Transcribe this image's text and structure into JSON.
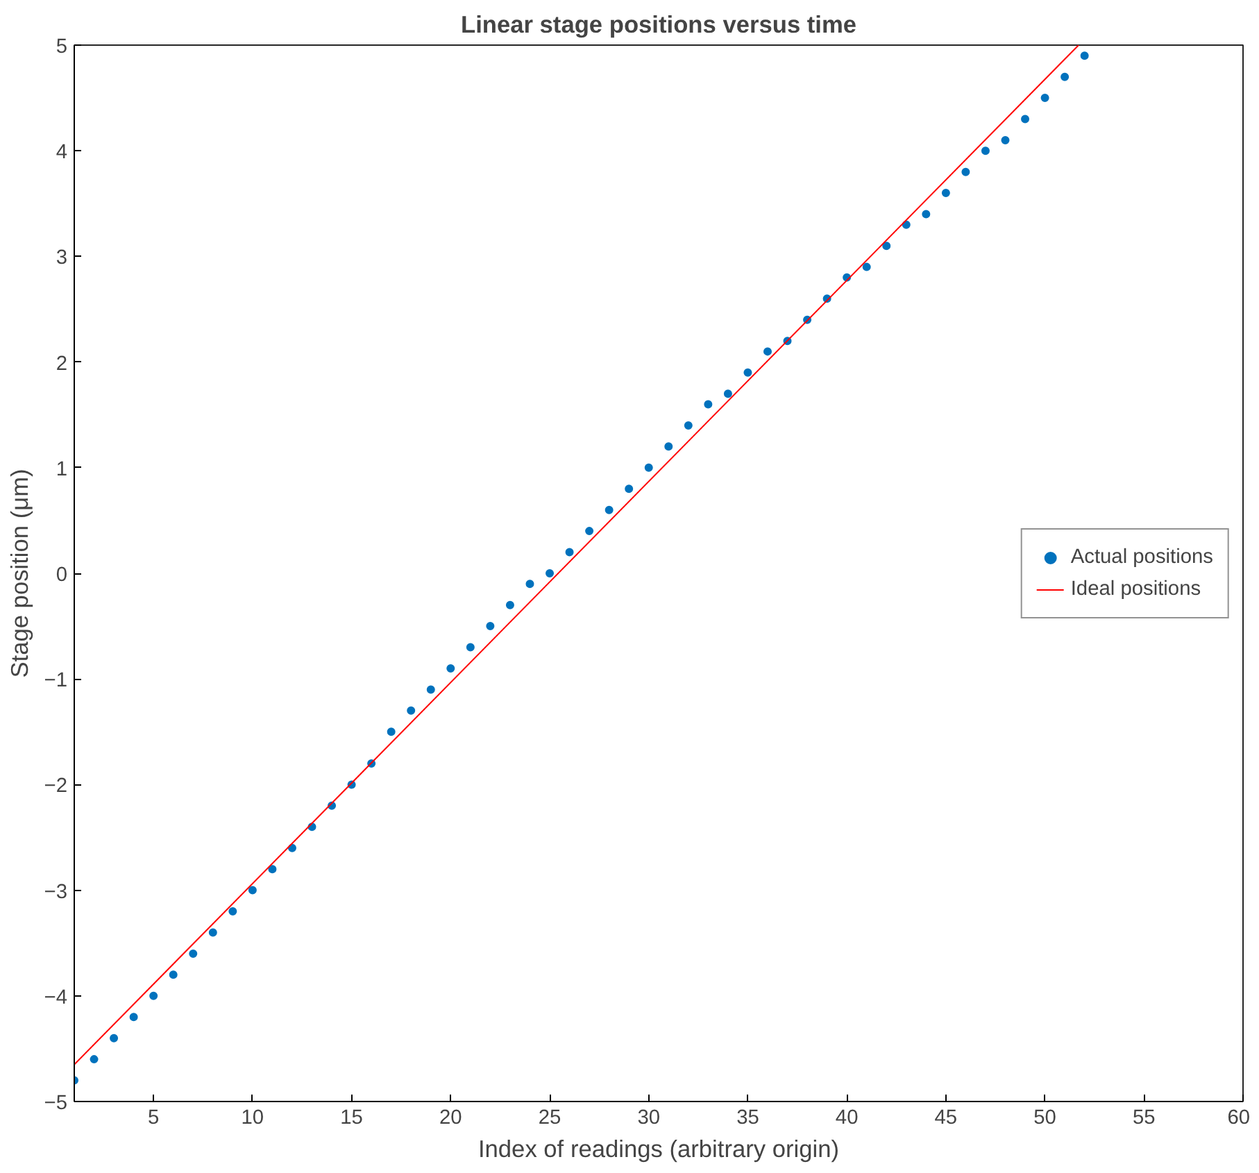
{
  "chart_data": {
    "type": "scatter",
    "title": "Linear stage positions versus time",
    "xlabel": "Index of readings (arbitrary origin)",
    "ylabel": "Stage position (μm)",
    "xlim": [
      1,
      60
    ],
    "ylim": [
      -5,
      5
    ],
    "xticks": [
      5,
      10,
      15,
      20,
      25,
      30,
      35,
      40,
      45,
      50,
      55,
      60
    ],
    "yticks": [
      -5,
      -4,
      -3,
      -2,
      -1,
      0,
      1,
      2,
      3,
      4,
      5
    ],
    "grid": false,
    "legend": "right",
    "series": [
      {
        "name": "Actual positions",
        "marker": "circle",
        "color": "#0072bd",
        "x": [
          1,
          2,
          3,
          4,
          5,
          6,
          7,
          8,
          9,
          10,
          11,
          12,
          13,
          14,
          15,
          16,
          17,
          18,
          19,
          20,
          21,
          22,
          23,
          24,
          25,
          26,
          27,
          28,
          29,
          30,
          31,
          32,
          33,
          34,
          35,
          36,
          37,
          38,
          39,
          40,
          41,
          42,
          43,
          44,
          45,
          46,
          47,
          48,
          49,
          50,
          51,
          52
        ],
        "values": [
          -4.8,
          -4.6,
          -4.4,
          -4.2,
          -4.0,
          -3.8,
          -3.6,
          -3.4,
          -3.2,
          -3.0,
          -2.8,
          -2.6,
          -2.4,
          -2.2,
          -2.0,
          -1.8,
          -1.5,
          -1.3,
          -1.1,
          -0.9,
          -0.7,
          -0.5,
          -0.3,
          -0.1,
          0.0,
          0.2,
          0.4,
          0.6,
          0.8,
          1.0,
          1.2,
          1.4,
          1.6,
          1.7,
          1.9,
          2.1,
          2.2,
          2.4,
          2.6,
          2.8,
          2.9,
          3.1,
          3.3,
          3.4,
          3.6,
          3.8,
          4.0,
          4.1,
          4.3,
          4.5,
          4.7,
          4.9
        ]
      },
      {
        "name": "Ideal positions",
        "type": "line",
        "marker": "none",
        "color": "#ff0000",
        "x": [
          1,
          51.7
        ],
        "values": [
          -4.65,
          5
        ]
      }
    ]
  }
}
